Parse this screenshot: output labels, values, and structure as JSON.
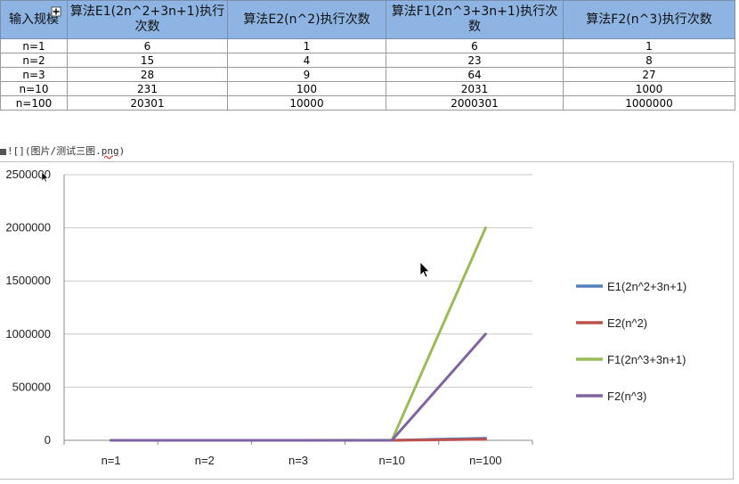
{
  "table": {
    "headers": [
      "输入规模",
      "算法E1(2n^2+3n+1)执行次数",
      "算法E2(n^2)执行次数",
      "算法F1(2n^3+3n+1)执行次数",
      "算法F2(n^3)执行次数"
    ],
    "rows": [
      [
        "n=1",
        "6",
        "1",
        "6",
        "1"
      ],
      [
        "n=2",
        "15",
        "4",
        "23",
        "8"
      ],
      [
        "n=3",
        "28",
        "9",
        "64",
        "27"
      ],
      [
        "n=10",
        "231",
        "100",
        "2031",
        "1000"
      ],
      [
        "n=100",
        "20301",
        "10000",
        "2000301",
        "1000000"
      ]
    ]
  },
  "markdown_line": {
    "prefix": "![](图片/测试三图.",
    "ext": "png",
    "suffix": ")"
  },
  "chart_data": {
    "type": "line",
    "categories": [
      "n=1",
      "n=2",
      "n=3",
      "n=10",
      "n=100"
    ],
    "series": [
      {
        "name": "E1(2n^2+3n+1)",
        "color": "#4f81bd",
        "values": [
          6,
          15,
          28,
          231,
          20301
        ]
      },
      {
        "name": "E2(n^2)",
        "color": "#c0504d",
        "values": [
          1,
          4,
          9,
          100,
          10000
        ]
      },
      {
        "name": "F1(2n^3+3n+1)",
        "color": "#9bbb59",
        "values": [
          6,
          23,
          64,
          2031,
          2000301
        ]
      },
      {
        "name": "F2(n^3)",
        "color": "#8064a2",
        "values": [
          1,
          8,
          27,
          1000,
          1000000
        ]
      }
    ],
    "yticks": [
      "0",
      "500000",
      "1000000",
      "1500000",
      "2000000",
      "2500000"
    ],
    "ylim": [
      0,
      2500000
    ],
    "grid": true,
    "legend": "right"
  }
}
